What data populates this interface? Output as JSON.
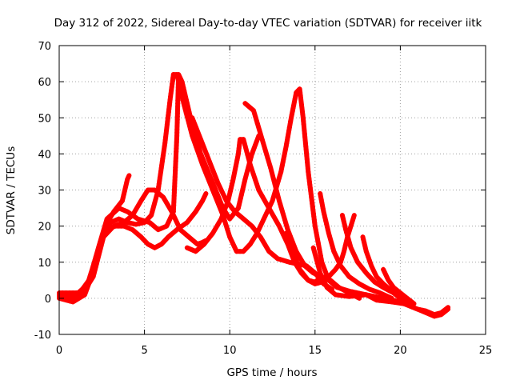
{
  "chart_data": {
    "type": "scatter",
    "title": "Day 312 of 2022, Sidereal Day-to-day VTEC variation (SDTVAR) for receiver iitk",
    "xlabel": "GPS time / hours",
    "ylabel": "SDTVAR / TECUs",
    "xlim": [
      0,
      25
    ],
    "ylim": [
      -10,
      70
    ],
    "xticks": [
      0,
      5,
      10,
      15,
      20,
      25
    ],
    "yticks": [
      -10,
      0,
      10,
      20,
      30,
      40,
      50,
      60,
      70
    ],
    "grid": true,
    "marker": "+",
    "color": "#ff0000",
    "series": [
      {
        "name": "track-1",
        "points": [
          [
            0,
            0
          ],
          [
            0.8,
            -1
          ],
          [
            1.5,
            1
          ],
          [
            2.2,
            10
          ],
          [
            2.7,
            20
          ],
          [
            3.2,
            24
          ],
          [
            3.7,
            27
          ],
          [
            4,
            33
          ],
          [
            4.1,
            34
          ]
        ]
      },
      {
        "name": "track-2",
        "points": [
          [
            0,
            1
          ],
          [
            1,
            1
          ],
          [
            1.7,
            4
          ],
          [
            2.3,
            14
          ],
          [
            2.8,
            22
          ],
          [
            3.5,
            25
          ],
          [
            4,
            24
          ],
          [
            4.6,
            22
          ],
          [
            5.3,
            21
          ],
          [
            5.8,
            19
          ],
          [
            6.3,
            20
          ],
          [
            6.7,
            24
          ],
          [
            6.9,
            45
          ],
          [
            7,
            62
          ],
          [
            7.2,
            60
          ],
          [
            7.7,
            50
          ],
          [
            8.3,
            40
          ],
          [
            9,
            32
          ],
          [
            9.6,
            25
          ],
          [
            10,
            22
          ],
          [
            10.5,
            25
          ],
          [
            10.9,
            33
          ],
          [
            11.3,
            40
          ],
          [
            11.7,
            45
          ]
        ]
      },
      {
        "name": "track-3",
        "points": [
          [
            0,
            1.5
          ],
          [
            1.2,
            1.5
          ],
          [
            1.9,
            6
          ],
          [
            2.5,
            16
          ],
          [
            3,
            21
          ],
          [
            3.5,
            22
          ],
          [
            4,
            21
          ],
          [
            4.5,
            20.5
          ],
          [
            5,
            21
          ],
          [
            5.4,
            23
          ],
          [
            5.8,
            30
          ],
          [
            6.2,
            43
          ],
          [
            6.5,
            55
          ],
          [
            6.7,
            62
          ],
          [
            6.9,
            62
          ],
          [
            7.3,
            54
          ],
          [
            7.8,
            45
          ],
          [
            8.4,
            37
          ],
          [
            9,
            30
          ],
          [
            9.6,
            23
          ],
          [
            10,
            17
          ],
          [
            10.4,
            13
          ],
          [
            10.8,
            13
          ],
          [
            11.2,
            15
          ],
          [
            11.6,
            18
          ],
          [
            12,
            22
          ],
          [
            12.5,
            27
          ],
          [
            13,
            35
          ],
          [
            13.3,
            42
          ],
          [
            13.6,
            50
          ],
          [
            13.9,
            57
          ],
          [
            14.1,
            58
          ],
          [
            14.3,
            50
          ],
          [
            14.6,
            35
          ],
          [
            15,
            20
          ],
          [
            15.4,
            10
          ],
          [
            15.8,
            5
          ],
          [
            16.3,
            3
          ],
          [
            17,
            2
          ],
          [
            18,
            1
          ],
          [
            19,
            0
          ],
          [
            20,
            -1
          ]
        ]
      },
      {
        "name": "track-4",
        "points": [
          [
            0,
            1
          ],
          [
            1.4,
            1.5
          ],
          [
            2,
            6
          ],
          [
            2.6,
            17
          ],
          [
            3.2,
            20
          ],
          [
            3.8,
            21
          ],
          [
            4.3,
            23
          ],
          [
            4.8,
            27
          ],
          [
            5.2,
            30
          ],
          [
            5.6,
            30
          ],
          [
            6.1,
            28
          ],
          [
            6.6,
            24
          ],
          [
            7.1,
            19
          ],
          [
            7.6,
            17
          ],
          [
            8.1,
            15
          ],
          [
            8.4,
            15.5
          ],
          [
            8.6,
            16
          ]
        ]
      },
      {
        "name": "track-5",
        "points": [
          [
            0,
            0.5
          ],
          [
            1,
            0
          ],
          [
            1.6,
            3
          ],
          [
            2.2,
            12
          ],
          [
            2.7,
            19
          ],
          [
            3.3,
            20
          ],
          [
            3.8,
            20
          ],
          [
            4.3,
            19
          ],
          [
            4.8,
            17
          ],
          [
            5.2,
            15
          ],
          [
            5.6,
            14
          ],
          [
            6,
            15
          ],
          [
            6.4,
            17
          ],
          [
            6.9,
            19
          ],
          [
            7.5,
            21
          ],
          [
            8,
            24
          ],
          [
            8.4,
            27
          ],
          [
            8.6,
            29
          ]
        ]
      },
      {
        "name": "track-6",
        "points": [
          [
            7.5,
            14
          ],
          [
            8,
            13
          ],
          [
            8.5,
            15
          ],
          [
            9,
            18
          ],
          [
            9.5,
            22
          ],
          [
            9.9,
            27
          ],
          [
            10.2,
            33
          ],
          [
            10.5,
            40
          ],
          [
            10.6,
            44
          ],
          [
            10.8,
            44
          ],
          [
            11.2,
            37
          ],
          [
            11.7,
            30
          ],
          [
            12.3,
            25
          ],
          [
            12.9,
            20
          ],
          [
            13.4,
            15
          ],
          [
            13.8,
            10
          ],
          [
            14.2,
            7
          ],
          [
            14.6,
            5
          ],
          [
            15,
            4.5
          ],
          [
            15.4,
            6
          ]
        ]
      },
      {
        "name": "track-7",
        "points": [
          [
            7.8,
            50
          ],
          [
            8.3,
            44
          ],
          [
            8.8,
            38
          ],
          [
            9.3,
            32
          ],
          [
            9.8,
            27
          ],
          [
            10.3,
            24
          ],
          [
            10.8,
            22
          ],
          [
            11.3,
            20
          ],
          [
            11.8,
            17
          ],
          [
            12.3,
            13
          ],
          [
            12.8,
            11
          ],
          [
            13.5,
            10
          ],
          [
            14,
            9.5
          ],
          [
            14.5,
            9
          ],
          [
            15,
            7
          ],
          [
            15.5,
            4
          ],
          [
            16,
            2.5
          ]
        ]
      },
      {
        "name": "track-8",
        "points": [
          [
            10.9,
            54
          ],
          [
            11.4,
            52
          ],
          [
            11.9,
            44
          ],
          [
            12.4,
            36
          ],
          [
            12.9,
            27
          ],
          [
            13.4,
            19
          ],
          [
            13.9,
            13
          ],
          [
            14.4,
            9
          ],
          [
            14.9,
            7
          ],
          [
            15.4,
            6
          ],
          [
            15.9,
            5
          ],
          [
            16.4,
            3
          ],
          [
            17,
            1.5
          ],
          [
            17.6,
            0
          ]
        ]
      },
      {
        "name": "track-9",
        "points": [
          [
            13.3,
            18
          ],
          [
            13.7,
            13
          ],
          [
            14.1,
            8
          ],
          [
            14.6,
            5
          ],
          [
            15,
            4
          ],
          [
            15.4,
            4.5
          ],
          [
            15.8,
            6
          ],
          [
            16.2,
            8
          ],
          [
            16.5,
            10
          ],
          [
            16.7,
            13
          ],
          [
            16.9,
            17
          ],
          [
            17.1,
            20
          ],
          [
            17.3,
            23
          ]
        ]
      },
      {
        "name": "track-10",
        "points": [
          [
            15.3,
            29
          ],
          [
            15.5,
            24
          ],
          [
            15.8,
            18
          ],
          [
            16.1,
            13
          ],
          [
            16.5,
            9
          ],
          [
            17,
            6
          ],
          [
            17.6,
            4
          ],
          [
            18.2,
            2.5
          ],
          [
            18.8,
            1.5
          ],
          [
            19.5,
            0
          ]
        ]
      },
      {
        "name": "track-11",
        "points": [
          [
            16.6,
            23
          ],
          [
            16.8,
            19
          ],
          [
            17.1,
            14
          ],
          [
            17.5,
            10
          ],
          [
            18,
            7
          ],
          [
            18.5,
            4.5
          ],
          [
            19,
            3
          ],
          [
            19.6,
            1.5
          ],
          [
            20,
            0
          ]
        ]
      },
      {
        "name": "track-12",
        "points": [
          [
            17.8,
            17
          ],
          [
            18,
            13
          ],
          [
            18.3,
            9
          ],
          [
            18.6,
            6
          ],
          [
            19,
            4
          ],
          [
            19.5,
            2
          ],
          [
            20,
            0.5
          ],
          [
            20.5,
            -1
          ]
        ]
      },
      {
        "name": "track-13",
        "points": [
          [
            19,
            8
          ],
          [
            19.3,
            5
          ],
          [
            19.6,
            3
          ],
          [
            20,
            1.5
          ],
          [
            20.4,
            0
          ],
          [
            20.8,
            -1.5
          ]
        ]
      },
      {
        "name": "track-14",
        "points": [
          [
            14.9,
            14
          ],
          [
            15.3,
            7
          ],
          [
            15.7,
            3
          ],
          [
            16.2,
            1
          ],
          [
            17,
            0.5
          ],
          [
            18,
            1
          ],
          [
            18.6,
            -0.5
          ],
          [
            19.5,
            -1
          ],
          [
            20.2,
            -1.5
          ],
          [
            21,
            -3
          ],
          [
            21.5,
            -4
          ],
          [
            22,
            -5
          ],
          [
            22.4,
            -4.5
          ],
          [
            22.8,
            -3
          ]
        ]
      },
      {
        "name": "track-15",
        "points": [
          [
            19.5,
            -0.5
          ],
          [
            20,
            -1
          ],
          [
            20.5,
            -2
          ],
          [
            21,
            -3
          ],
          [
            21.5,
            -3.5
          ],
          [
            22,
            -4.5
          ],
          [
            22.4,
            -4
          ],
          [
            22.8,
            -2.5
          ]
        ]
      }
    ]
  }
}
